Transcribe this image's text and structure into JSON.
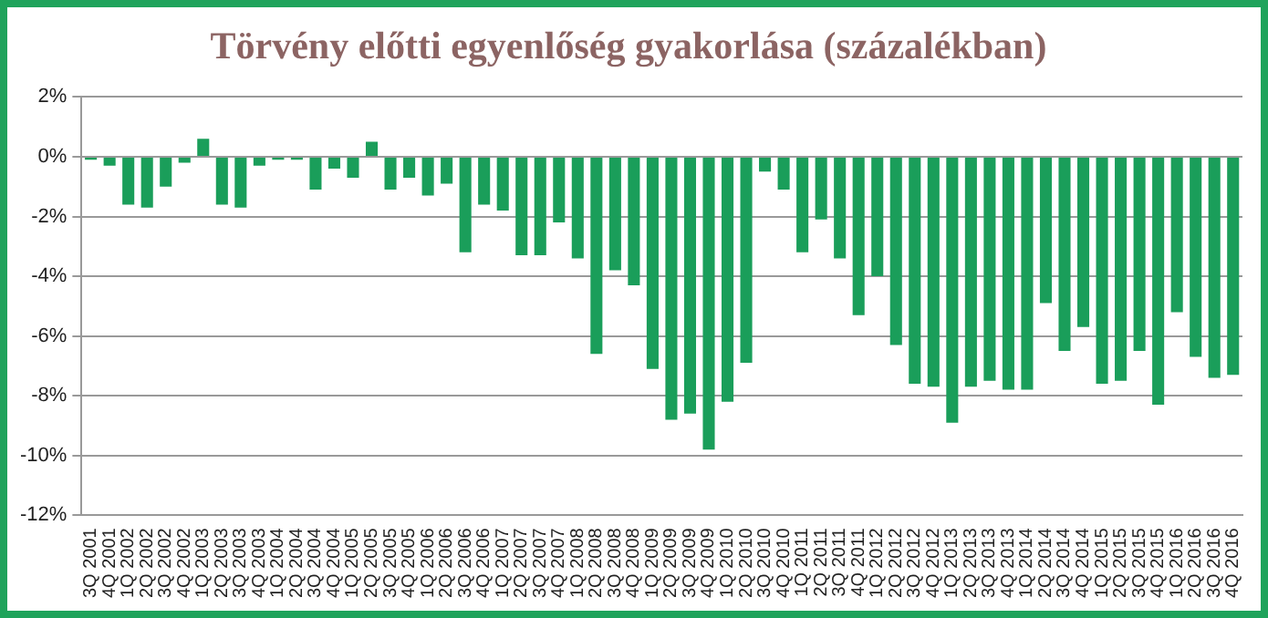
{
  "chart_data": {
    "type": "bar",
    "title": "Törvény előtti egyenlőség gyakorlása (százalékban)",
    "categories": [
      "3Q 2001",
      "4Q 2001",
      "1Q 2002",
      "2Q 2002",
      "3Q 2002",
      "4Q 2002",
      "1Q 2003",
      "2Q 2003",
      "3Q 2003",
      "4Q 2003",
      "1Q 2004",
      "2Q 2004",
      "3Q 2004",
      "4Q 2004",
      "1Q 2005",
      "2Q 2005",
      "3Q 2005",
      "4Q 2005",
      "1Q 2006",
      "2Q 2006",
      "3Q 2006",
      "4Q 2006",
      "1Q 2007",
      "2Q 2007",
      "3Q 2007",
      "4Q 2007",
      "1Q 2008",
      "2Q 2008",
      "3Q 2008",
      "4Q 2008",
      "1Q 2009",
      "2Q 2009",
      "3Q 2009",
      "4Q 2009",
      "1Q 2010",
      "2Q 2010",
      "3Q 2010",
      "4Q 2010",
      "1Q 2011",
      "2Q 2011",
      "3Q 2011",
      "4Q 2011",
      "1Q 2012",
      "2Q 2012",
      "3Q 2012",
      "4Q 2012",
      "1Q 2013",
      "2Q 2013",
      "3Q 2013",
      "4Q 2013",
      "1Q 2014",
      "2Q 2014",
      "3Q 2014",
      "4Q 2014",
      "1Q 2015",
      "2Q 2015",
      "3Q 2015",
      "4Q 2015",
      "1Q 2016",
      "2Q 2016",
      "3Q 2016",
      "4Q 2016"
    ],
    "values": [
      -0.1,
      -0.3,
      -1.6,
      -1.7,
      -1.0,
      -0.2,
      0.6,
      -1.6,
      -1.7,
      -0.3,
      -0.1,
      -0.1,
      -1.1,
      -0.4,
      -0.7,
      0.5,
      -1.1,
      -0.7,
      -1.3,
      -0.9,
      -3.2,
      -1.6,
      -1.8,
      -3.3,
      -3.3,
      -2.2,
      -3.4,
      -6.6,
      -3.8,
      -4.3,
      -7.1,
      -8.8,
      -8.6,
      -9.8,
      -8.2,
      -6.9,
      -0.5,
      -1.1,
      -3.2,
      -2.1,
      -3.4,
      -5.3,
      -4.0,
      -6.3,
      -7.6,
      -7.7,
      -8.9,
      -7.7,
      -7.5,
      -7.8,
      -7.8,
      -4.9,
      -6.5,
      -5.7,
      -7.6,
      -7.5,
      -6.5,
      -8.3,
      -5.2,
      -6.7,
      -7.4,
      -7.3
    ],
    "color": "#1a9e5a",
    "ylim": [
      -12,
      2
    ],
    "yticks": [
      {
        "value": 2,
        "label": "2%"
      },
      {
        "value": 0,
        "label": "0%"
      },
      {
        "value": -2,
        "label": "-2%"
      },
      {
        "value": -4,
        "label": "-4%"
      },
      {
        "value": -6,
        "label": "-6%"
      },
      {
        "value": -8,
        "label": "-8%"
      },
      {
        "value": -10,
        "label": "-10%"
      },
      {
        "value": -12,
        "label": "-12%"
      }
    ],
    "grid": "y",
    "legend": false
  }
}
